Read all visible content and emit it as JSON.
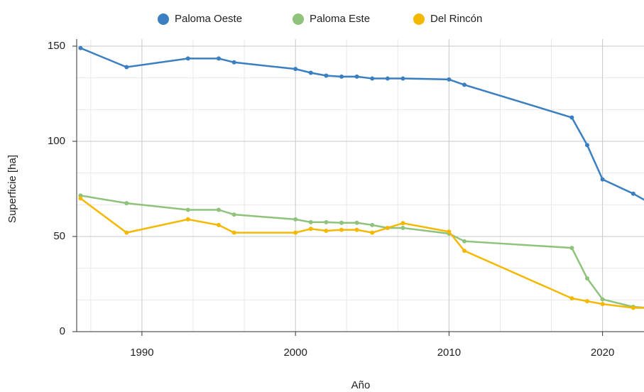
{
  "chart_data": {
    "type": "line",
    "x": [
      1986,
      1989,
      1993,
      1995,
      1996,
      2000,
      2001,
      2002,
      2003,
      2004,
      2005,
      2006,
      2007,
      2010,
      2011,
      2018,
      2019,
      2020,
      2022,
      2023
    ],
    "series": [
      {
        "name": "Paloma Oeste",
        "color": "#3a7fc1",
        "values": [
          149,
          139,
          143.5,
          143.5,
          141.5,
          138,
          136,
          134.5,
          134,
          134,
          133,
          133,
          133,
          132.5,
          129.7,
          112.5,
          98,
          80,
          72.5,
          68
        ]
      },
      {
        "name": "Paloma Este",
        "color": "#8fc27b",
        "values": [
          71.5,
          67.5,
          64,
          64,
          61.5,
          59,
          57.5,
          57.5,
          57.2,
          57.2,
          56,
          54.5,
          54.5,
          51.5,
          47.5,
          44,
          28,
          17,
          13,
          12.5
        ]
      },
      {
        "name": "Del Rincón",
        "color": "#f5b800",
        "values": [
          70,
          52,
          59,
          56,
          52,
          52,
          54,
          53,
          53.5,
          53.5,
          52,
          54.5,
          57,
          52.5,
          42.5,
          17.5,
          16,
          14.5,
          12.5,
          12.5
        ]
      }
    ],
    "xlabel": "Año",
    "ylabel": "Superficie [ha]",
    "xlim": [
      1985.75,
      2022.7
    ],
    "ylim": [
      0,
      150
    ],
    "xticks": [
      1990,
      2000,
      2010,
      2020
    ],
    "yticks": [
      0,
      50,
      100,
      150
    ],
    "x_minor_ticks": [
      1986.667,
      1993.333,
      1996.667,
      2003.333,
      2006.667,
      2013.333,
      2016.667
    ],
    "y_minor_ticks": [
      16.667,
      33.333,
      66.667,
      83.333,
      116.667,
      133.333
    ],
    "grid": true,
    "legend": "top"
  }
}
